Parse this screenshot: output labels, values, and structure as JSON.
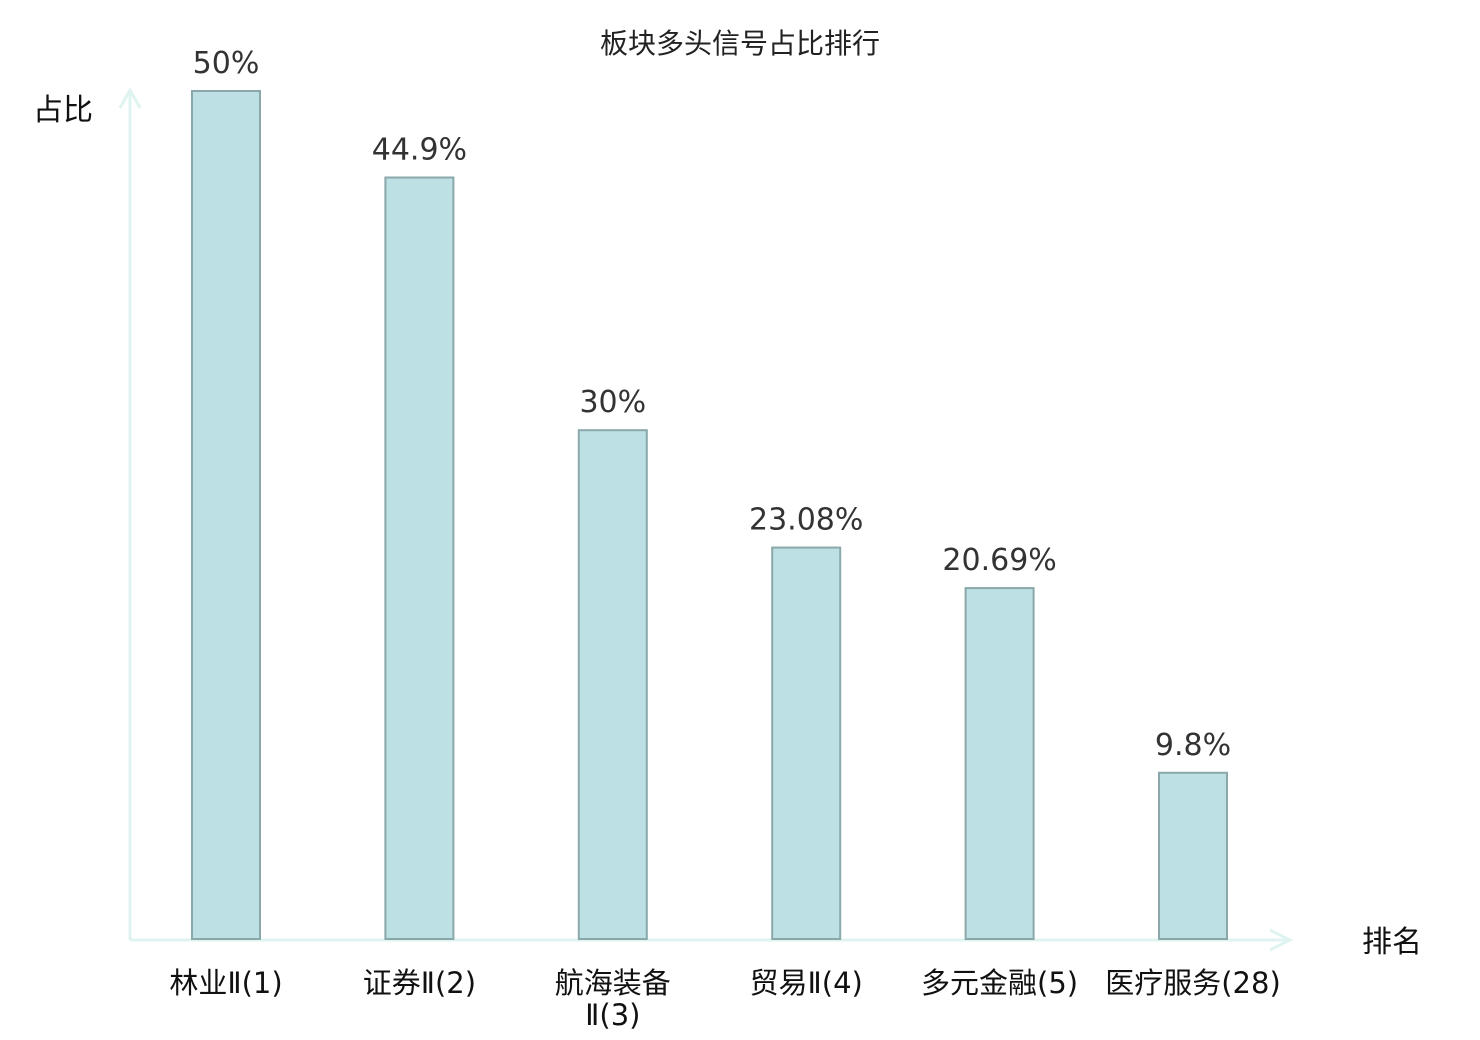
{
  "chart_data": {
    "type": "bar",
    "title": "板块多头信号占比排行",
    "xlabel": "排名",
    "ylabel": "占比",
    "categories": [
      "林业Ⅱ(1)",
      "证券Ⅱ(2)",
      "航海装备Ⅱ(3)",
      "贸易Ⅱ(4)",
      "多元金融(5)",
      "医疗服务(28)"
    ],
    "values": [
      50,
      44.9,
      30,
      23.08,
      20.69,
      9.8
    ],
    "data_labels": [
      "50%",
      "44.9%",
      "30%",
      "23.08%",
      "20.69%",
      "9.8%"
    ],
    "ylim": [
      0,
      50
    ],
    "grid": false,
    "legend": "none",
    "colors": {
      "bar_fill": "#bce0e3",
      "bar_stroke": "#8aa8aa",
      "axis": "#dff3f1",
      "highlight_label": "#e8161b",
      "label": "#111111"
    },
    "highlight_category_index": 5
  }
}
